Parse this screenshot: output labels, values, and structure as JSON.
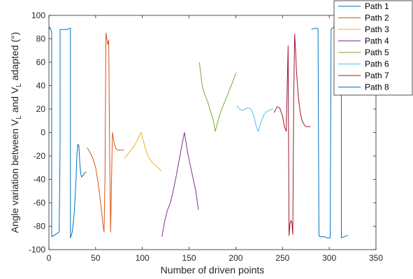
{
  "chart_data": {
    "type": "line",
    "xlabel": "Number of driven points",
    "ylabel": {
      "parts": [
        "Angle variation between V",
        "L",
        " and V",
        "L",
        " adapted (°)"
      ]
    },
    "xlim": [
      0,
      350
    ],
    "ylim": [
      -100,
      100
    ],
    "xticks": [
      0,
      50,
      100,
      150,
      200,
      250,
      300,
      350
    ],
    "yticks": [
      -100,
      -80,
      -60,
      -40,
      -20,
      0,
      20,
      40,
      60,
      80,
      100
    ],
    "grid": false,
    "legend_position": "top-right",
    "series": [
      {
        "name": "Path 1",
        "color": "#0072BD",
        "x": [
          0,
          1,
          2,
          3,
          3,
          5,
          7,
          9,
          11,
          12,
          12,
          15,
          18,
          20,
          22,
          23,
          23,
          25,
          27,
          29,
          30,
          31,
          32,
          33,
          34,
          35,
          36,
          37,
          38,
          39,
          40
        ],
        "y": [
          88,
          90,
          88,
          85,
          -89,
          -88,
          -87,
          -86,
          -85,
          -10,
          88,
          88,
          88,
          88,
          89,
          89,
          -90,
          -85,
          -70,
          -40,
          -18,
          -10,
          -11,
          -25,
          -35,
          -38,
          -37,
          -36,
          -35,
          -34,
          -34
        ]
      },
      {
        "name": "Path 2",
        "color": "#D95319",
        "x": [
          41,
          44,
          47,
          50,
          53,
          56,
          58,
          59,
          60,
          61,
          62,
          63,
          64,
          65,
          66,
          67,
          68,
          69,
          70,
          72,
          74,
          76,
          78,
          80
        ],
        "y": [
          -13,
          -17,
          -22,
          -30,
          -45,
          -65,
          -80,
          -85,
          -40,
          85,
          80,
          75,
          79,
          -20,
          -85,
          -40,
          0,
          -5,
          -10,
          -14,
          -15,
          -15,
          -15,
          -15
        ]
      },
      {
        "name": "Path 3",
        "color": "#EDB120",
        "x": [
          81,
          84,
          87,
          90,
          93,
          96,
          98,
          99,
          100,
          102,
          105,
          108,
          111,
          114,
          117,
          120
        ],
        "y": [
          -22,
          -19,
          -16,
          -13,
          -9,
          -4,
          -1,
          0,
          -4,
          -10,
          -18,
          -23,
          -26,
          -28,
          -30,
          -33
        ]
      },
      {
        "name": "Path 4",
        "color": "#7E2F8E",
        "x": [
          121,
          124,
          127,
          130,
          133,
          136,
          139,
          142,
          145,
          148,
          151,
          154,
          157,
          160
        ],
        "y": [
          -89,
          -75,
          -66,
          -60,
          -50,
          -38,
          -25,
          -12,
          0,
          -15,
          -27,
          -38,
          -49,
          -66
        ]
      },
      {
        "name": "Path 5",
        "color": "#77AC30",
        "x": [
          161,
          164,
          167,
          170,
          173,
          176,
          178,
          181,
          184,
          187,
          190,
          193,
          196,
          199,
          200
        ],
        "y": [
          60,
          40,
          32,
          26,
          18,
          10,
          1,
          10,
          18,
          24,
          30,
          36,
          42,
          48,
          51
        ]
      },
      {
        "name": "Path 6",
        "color": "#4DBEEE",
        "x": [
          201,
          204,
          207,
          210,
          213,
          216,
          219,
          222,
          224,
          227,
          230,
          233,
          236,
          239,
          240
        ],
        "y": [
          23,
          20,
          19,
          20,
          21,
          20,
          15,
          5,
          1,
          9,
          15,
          18,
          19,
          20,
          20
        ]
      },
      {
        "name": "Path 7",
        "color": "#A2142F",
        "x": [
          241,
          244,
          247,
          250,
          252,
          254,
          256,
          257,
          258,
          259,
          260,
          261,
          262,
          263,
          264,
          265,
          267,
          269,
          271,
          273,
          275,
          277,
          280
        ],
        "y": [
          17,
          22,
          21,
          14,
          5,
          1,
          74,
          -88,
          -78,
          -75,
          -77,
          -87,
          30,
          84,
          70,
          52,
          30,
          17,
          10,
          7,
          5,
          5,
          5
        ]
      },
      {
        "name": "Path 8",
        "color": "#0072BD",
        "x": [
          281,
          284,
          287,
          288,
          289,
          290,
          292,
          295,
          298,
          301,
          302,
          303,
          305,
          307,
          308,
          309,
          310,
          311,
          312,
          313,
          313,
          316,
          319,
          320
        ],
        "y": [
          88,
          89,
          89,
          88,
          -88,
          -89,
          -89,
          -89,
          -90,
          -90,
          88,
          89,
          90,
          89,
          84,
          84,
          88,
          89,
          88,
          88,
          -90,
          -89,
          -88,
          -88
        ]
      }
    ]
  }
}
